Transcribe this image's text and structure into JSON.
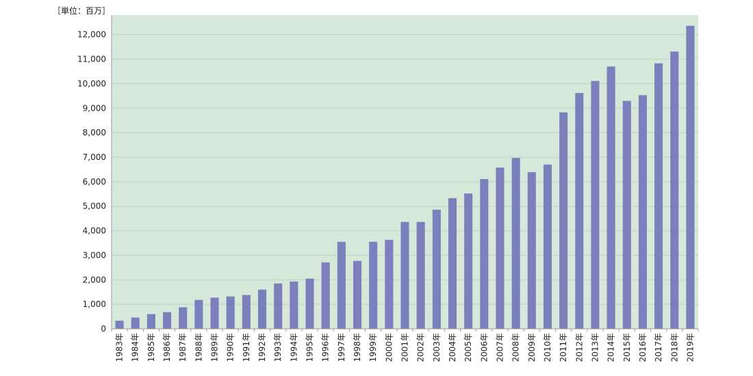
{
  "chart_data": {
    "type": "bar",
    "unit_label": "［単位：百万］",
    "categories": [
      "1983年",
      "1984年",
      "1985年",
      "1986年",
      "1987年",
      "1988年",
      "1989年",
      "1990年",
      "1991年",
      "1992年",
      "1993年",
      "1994年",
      "1995年",
      "1996年",
      "1997年",
      "1998年",
      "1999年",
      "2000年",
      "2001年",
      "2002年",
      "2003年",
      "2004年",
      "2005年",
      "2006年",
      "2007年",
      "2008年",
      "2009年",
      "2010年",
      "2011年",
      "2012年",
      "2013年",
      "2014年",
      "2015年",
      "2016年",
      "2017年",
      "2018年",
      "2019年"
    ],
    "values": [
      330,
      460,
      600,
      680,
      880,
      1180,
      1270,
      1320,
      1380,
      1600,
      1850,
      1930,
      2050,
      2710,
      3550,
      2770,
      3550,
      3630,
      4360,
      4360,
      4860,
      5330,
      5520,
      6110,
      6580,
      6970,
      6390,
      6700,
      8830,
      9620,
      10110,
      10700,
      9300,
      9530,
      10830,
      11310,
      12360
    ],
    "ylim": [
      0,
      12800
    ],
    "yticks": [
      0,
      1000,
      2000,
      3000,
      4000,
      5000,
      6000,
      7000,
      8000,
      9000,
      10000,
      11000,
      12000
    ],
    "ytick_labels": [
      "0",
      "1,000",
      "2,000",
      "3,000",
      "4,000",
      "5,000",
      "6,000",
      "7,000",
      "8,000",
      "9,000",
      "10,000",
      "11,000",
      "12,000"
    ],
    "grid": true,
    "colors": {
      "bar": "#7b7fbb",
      "plot_background": "#d5e8d9",
      "grid": "#bfcfc3",
      "axis": "#9a9a9a"
    }
  }
}
